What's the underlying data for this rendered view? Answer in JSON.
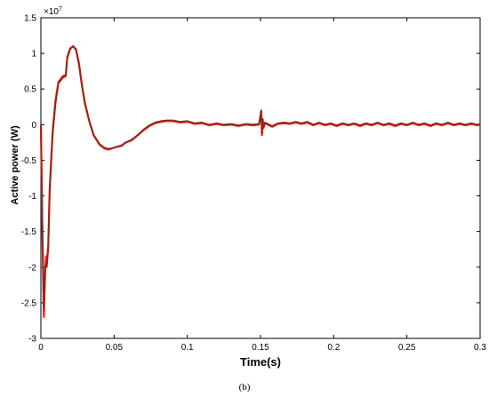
{
  "chart_data": {
    "type": "line",
    "xlabel": "Time(s)",
    "ylabel": "Active power  (W)",
    "exponent_label": "×10",
    "exponent_power": "7",
    "xlim": [
      0,
      0.3
    ],
    "ylim": [
      -3,
      1.5
    ],
    "xticks": [
      "0",
      "0.05",
      "0.1",
      "0.15",
      "0.2",
      "0.25",
      "0.3"
    ],
    "yticks": [
      "-3",
      "-2.5",
      "-2",
      "-1.5",
      "-1",
      "-0.5",
      "0",
      "0.5",
      "1",
      "1.5"
    ],
    "xtick_values": [
      0,
      0.05,
      0.1,
      0.15,
      0.2,
      0.25,
      0.3
    ],
    "ytick_values": [
      -3,
      -2.5,
      -2,
      -1.5,
      -1,
      -0.5,
      0,
      0.5,
      1,
      1.5
    ],
    "grid": false,
    "series": [
      {
        "color": "#ff1a1a",
        "values_unit": "x1e7 W",
        "x": [
          0,
          0.001,
          0.002,
          0.003,
          0.0035,
          0.004,
          0.005,
          0.006,
          0.008,
          0.01,
          0.012,
          0.015,
          0.017,
          0.018,
          0.02,
          0.022,
          0.024,
          0.026,
          0.028,
          0.03,
          0.033,
          0.036,
          0.04,
          0.043,
          0.046,
          0.049,
          0.052,
          0.055,
          0.058,
          0.062,
          0.066,
          0.07,
          0.074,
          0.078,
          0.082,
          0.086,
          0.09,
          0.095,
          0.1,
          0.105,
          0.11,
          0.115,
          0.12,
          0.125,
          0.13,
          0.135,
          0.14,
          0.145,
          0.149,
          0.1505,
          0.151,
          0.1515,
          0.152,
          0.153,
          0.155,
          0.158,
          0.162,
          0.166,
          0.17,
          0.174,
          0.178,
          0.182,
          0.186,
          0.19,
          0.194,
          0.198,
          0.202,
          0.206,
          0.21,
          0.214,
          0.218,
          0.222,
          0.226,
          0.23,
          0.234,
          0.238,
          0.242,
          0.246,
          0.25,
          0.254,
          0.258,
          0.262,
          0.266,
          0.27,
          0.274,
          0.278,
          0.282,
          0.286,
          0.29,
          0.294,
          0.298,
          0.3
        ],
        "y": [
          0,
          -1.5,
          -2.7,
          -2.0,
          -1.85,
          -1.95,
          -1.7,
          -0.9,
          -0.1,
          0.35,
          0.6,
          0.68,
          0.7,
          0.95,
          1.07,
          1.1,
          1.05,
          0.85,
          0.55,
          0.3,
          0.05,
          -0.15,
          -0.28,
          -0.33,
          -0.35,
          -0.33,
          -0.31,
          -0.3,
          -0.25,
          -0.22,
          -0.15,
          -0.08,
          -0.02,
          0.02,
          0.04,
          0.05,
          0.05,
          0.03,
          0.04,
          0.01,
          0.02,
          -0.01,
          0.01,
          -0.01,
          0.0,
          -0.02,
          0.0,
          -0.01,
          0.0,
          0.2,
          -0.15,
          0.08,
          -0.05,
          0.02,
          0.0,
          -0.03,
          0.01,
          0.02,
          0.01,
          0.03,
          0.01,
          0.03,
          -0.01,
          0.02,
          -0.01,
          0.01,
          -0.02,
          0.01,
          -0.01,
          0.01,
          -0.02,
          0.01,
          -0.01,
          0.02,
          -0.01,
          0.01,
          -0.02,
          0.01,
          -0.01,
          0.02,
          -0.01,
          0.01,
          -0.02,
          0.01,
          -0.01,
          0.02,
          -0.01,
          0.01,
          -0.01,
          0.01,
          -0.01,
          0.0
        ]
      },
      {
        "color": "#8b2a1a",
        "values_unit": "x1e7 W",
        "x": [
          0,
          0.001,
          0.002,
          0.003,
          0.0035,
          0.004,
          0.005,
          0.006,
          0.008,
          0.01,
          0.012,
          0.015,
          0.017,
          0.018,
          0.02,
          0.022,
          0.024,
          0.026,
          0.028,
          0.03,
          0.033,
          0.036,
          0.04,
          0.043,
          0.046,
          0.049,
          0.052,
          0.055,
          0.058,
          0.062,
          0.066,
          0.07,
          0.074,
          0.078,
          0.082,
          0.086,
          0.09,
          0.095,
          0.1,
          0.105,
          0.11,
          0.115,
          0.12,
          0.125,
          0.13,
          0.135,
          0.14,
          0.145,
          0.149,
          0.1505,
          0.151,
          0.1515,
          0.152,
          0.153,
          0.155,
          0.158,
          0.162,
          0.166,
          0.17,
          0.174,
          0.178,
          0.182,
          0.186,
          0.19,
          0.194,
          0.198,
          0.202,
          0.206,
          0.21,
          0.214,
          0.218,
          0.222,
          0.226,
          0.23,
          0.234,
          0.238,
          0.242,
          0.246,
          0.25,
          0.254,
          0.258,
          0.262,
          0.266,
          0.27,
          0.274,
          0.278,
          0.282,
          0.286,
          0.29,
          0.294,
          0.298,
          0.3
        ],
        "y": [
          0,
          -1.4,
          -2.6,
          -2.05,
          -1.95,
          -2.0,
          -1.75,
          -0.95,
          -0.15,
          0.3,
          0.58,
          0.66,
          0.68,
          0.93,
          1.06,
          1.1,
          1.06,
          0.87,
          0.57,
          0.32,
          0.06,
          -0.14,
          -0.27,
          -0.32,
          -0.34,
          -0.33,
          -0.31,
          -0.29,
          -0.25,
          -0.21,
          -0.15,
          -0.07,
          -0.01,
          0.03,
          0.05,
          0.06,
          0.06,
          0.04,
          0.05,
          0.02,
          0.03,
          0.0,
          0.02,
          0.0,
          0.01,
          -0.01,
          0.01,
          0.0,
          0.01,
          0.18,
          -0.12,
          0.07,
          -0.04,
          0.03,
          0.01,
          -0.02,
          0.02,
          0.03,
          0.02,
          0.04,
          0.02,
          0.04,
          0.0,
          0.03,
          0.0,
          0.02,
          -0.01,
          0.02,
          0.0,
          0.02,
          -0.01,
          0.02,
          0.0,
          0.03,
          0.0,
          0.02,
          -0.01,
          0.02,
          0.0,
          0.03,
          0.0,
          0.02,
          -0.01,
          0.02,
          0.0,
          0.03,
          0.0,
          0.02,
          0.0,
          0.02,
          0.0,
          0.01
        ]
      }
    ]
  },
  "caption": "(b)"
}
